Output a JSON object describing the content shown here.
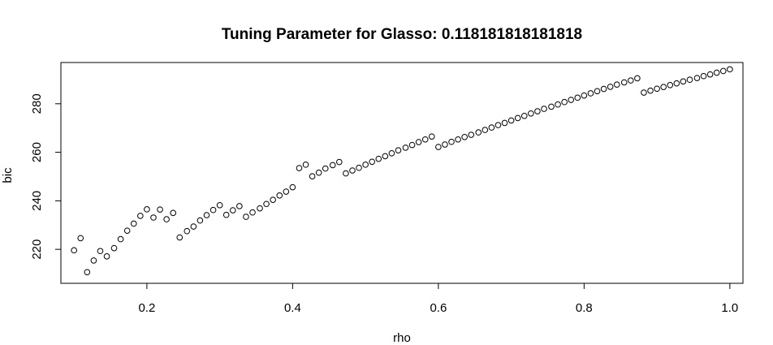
{
  "chart_data": {
    "type": "scatter",
    "title": "Tuning Parameter for Glasso: 0.118181818181818",
    "xlabel": "rho",
    "ylabel": "bic",
    "xlim": [
      0.082,
      1.018
    ],
    "ylim": [
      206,
      297
    ],
    "xticks": [
      "0.2",
      "0.4",
      "0.6",
      "0.8",
      "1.0"
    ],
    "yticks": [
      "220",
      "240",
      "260",
      "280"
    ],
    "marker": "open-circle",
    "grid": false,
    "series": [
      {
        "x": [
          0.1,
          0.109,
          0.118,
          0.127,
          0.136,
          0.145,
          0.155,
          0.164,
          0.173,
          0.182,
          0.191,
          0.2,
          0.209,
          0.218,
          0.227,
          0.236,
          0.245,
          0.255,
          0.264,
          0.273,
          0.282,
          0.291,
          0.3,
          0.309,
          0.318,
          0.327,
          0.336,
          0.345,
          0.355,
          0.364,
          0.373,
          0.382,
          0.391,
          0.4,
          0.409,
          0.418,
          0.427,
          0.436,
          0.445,
          0.455,
          0.464,
          0.473,
          0.482,
          0.491,
          0.5,
          0.509,
          0.518,
          0.527,
          0.536,
          0.545,
          0.555,
          0.564,
          0.573,
          0.582,
          0.591,
          0.6,
          0.609,
          0.618,
          0.627,
          0.636,
          0.645,
          0.655,
          0.664,
          0.673,
          0.682,
          0.691,
          0.7,
          0.709,
          0.718,
          0.727,
          0.736,
          0.745,
          0.755,
          0.764,
          0.773,
          0.782,
          0.791,
          0.8,
          0.809,
          0.818,
          0.827,
          0.836,
          0.845,
          0.855,
          0.864,
          0.873,
          0.882,
          0.891,
          0.9,
          0.909,
          0.918,
          0.927,
          0.936,
          0.945,
          0.955,
          0.964,
          0.973,
          0.982,
          0.991,
          1.0
        ],
        "y": [
          219.6,
          224.6,
          210.6,
          215.4,
          219.3,
          217.1,
          220.5,
          224.2,
          227.7,
          230.6,
          233.8,
          236.5,
          233.1,
          236.4,
          232.4,
          235.0,
          224.9,
          227.5,
          229.4,
          231.9,
          234.1,
          236.2,
          238.2,
          234.2,
          236.1,
          237.8,
          233.4,
          235.2,
          236.9,
          238.7,
          240.4,
          242.2,
          243.8,
          245.6,
          253.5,
          254.9,
          250.1,
          251.6,
          253.3,
          254.7,
          256.0,
          251.3,
          252.5,
          253.6,
          254.9,
          256.1,
          257.3,
          258.4,
          259.6,
          260.8,
          261.9,
          263.0,
          264.2,
          265.3,
          266.5,
          262.2,
          263.2,
          264.3,
          265.3,
          266.3,
          267.2,
          268.2,
          269.2,
          270.2,
          271.2,
          272.1,
          273.1,
          274.1,
          275.0,
          276.0,
          276.9,
          277.9,
          278.8,
          279.7,
          280.7,
          281.6,
          282.5,
          283.4,
          284.3,
          285.2,
          286.1,
          287.0,
          287.9,
          288.8,
          289.6,
          290.5,
          284.6,
          285.4,
          286.2,
          286.9,
          287.7,
          288.4,
          289.2,
          289.9,
          290.6,
          291.4,
          292.1,
          292.8,
          293.5,
          294.2
        ]
      }
    ]
  }
}
